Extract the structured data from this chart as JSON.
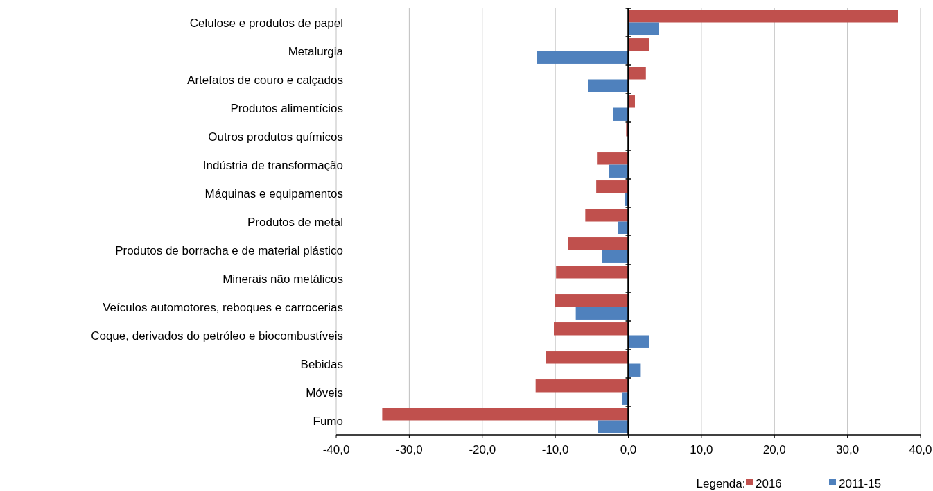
{
  "chart_data": {
    "type": "bar",
    "orientation": "horizontal",
    "categories": [
      "Celulose e produtos de papel",
      "Metalurgia",
      "Artefatos de couro e calçados",
      "Produtos alimentícios",
      "Outros produtos químicos",
      "Indústria de transformação",
      "Máquinas e equipamentos",
      "Produtos de metal",
      "Produtos de borracha e de material plástico",
      "Minerais não metálicos",
      "Veículos automotores, reboques e carrocerias",
      "Coque, derivados do petróleo e biocombustíveis",
      "Bebidas",
      "Móveis",
      "Fumo"
    ],
    "series": [
      {
        "name": "2016",
        "color": "#c0504d",
        "values": [
          36.9,
          2.8,
          2.4,
          0.9,
          -0.3,
          -4.3,
          -4.4,
          -5.9,
          -8.3,
          -9.9,
          -10.1,
          -10.2,
          -11.3,
          -12.7,
          -33.7
        ]
      },
      {
        "name": "2011-15",
        "color": "#4f81bd",
        "values": [
          4.2,
          -12.5,
          -5.5,
          -2.1,
          0,
          -2.7,
          -0.5,
          -1.4,
          -3.6,
          0,
          -7.2,
          2.8,
          1.7,
          -0.9,
          -4.2
        ]
      }
    ],
    "xlim": [
      -40,
      40
    ],
    "xticks": [
      {
        "value": -40,
        "label": "-40,0"
      },
      {
        "value": -30,
        "label": "-30,0"
      },
      {
        "value": -20,
        "label": "-20,0"
      },
      {
        "value": -10,
        "label": "-10,0"
      },
      {
        "value": 0,
        "label": "0,0"
      },
      {
        "value": 10,
        "label": "10,0"
      },
      {
        "value": 20,
        "label": "20,0"
      },
      {
        "value": 30,
        "label": "30,0"
      },
      {
        "value": 40,
        "label": "40,0"
      }
    ],
    "grid": "x",
    "legend": "bottom right",
    "legend_title": "Legenda:"
  }
}
